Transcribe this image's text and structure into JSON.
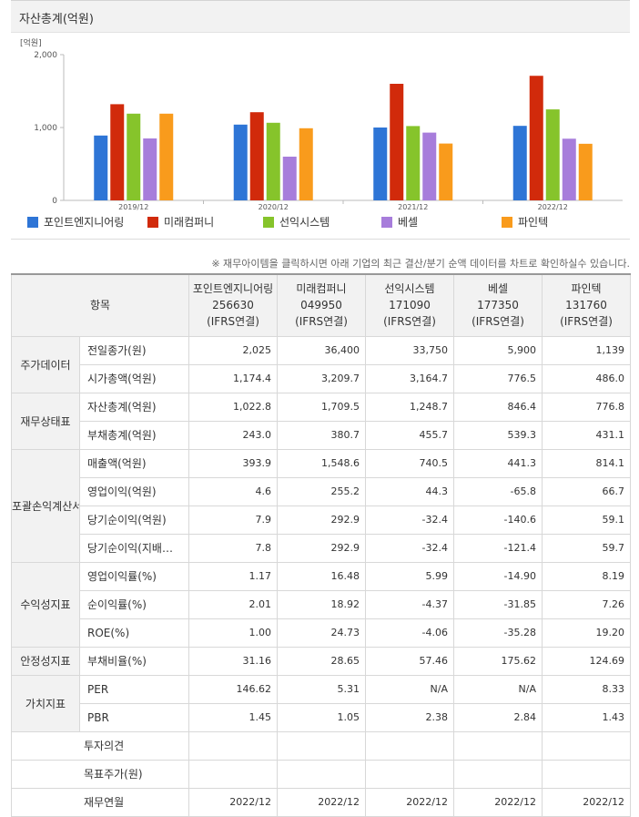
{
  "chart_title": "자산총계(억원)",
  "chart_data": {
    "type": "bar",
    "unit_label": "[억원]",
    "categories": [
      "2019/12",
      "2020/12",
      "2021/12",
      "2022/12"
    ],
    "yticks": [
      "2,000",
      "1,000",
      "0"
    ],
    "ylim": [
      0,
      2000
    ],
    "grid": false,
    "legend_position": "bottom",
    "series": [
      {
        "name": "포인트엔지니어링",
        "color": "#2e75d6",
        "values": [
          890,
          1040,
          1000,
          1022.8
        ]
      },
      {
        "name": "미래컴퍼니",
        "color": "#d12a0b",
        "values": [
          1320,
          1210,
          1600,
          1709.5
        ]
      },
      {
        "name": "선익시스템",
        "color": "#86c42b",
        "values": [
          1190,
          1065,
          1020,
          1248.7
        ]
      },
      {
        "name": "베셀",
        "color": "#a77ddb",
        "values": [
          850,
          600,
          930,
          846.4
        ]
      },
      {
        "name": "파인텍",
        "color": "#f99b1c",
        "values": [
          1190,
          990,
          780,
          776.8
        ]
      }
    ]
  },
  "note": "※ 재무아이템을 클릭하시면 아래 기업의 최근 결산/분기 순액 데이터를 차트로 확인하실수 있습니다.",
  "table": {
    "header_item": "항목",
    "columns": [
      {
        "name": "포인트엔지니어링",
        "code": "256630",
        "type": "(IFRS연결)"
      },
      {
        "name": "미래컴퍼니",
        "code": "049950",
        "type": "(IFRS연결)"
      },
      {
        "name": "선익시스템",
        "code": "171090",
        "type": "(IFRS연결)"
      },
      {
        "name": "베셀",
        "code": "177350",
        "type": "(IFRS연결)"
      },
      {
        "name": "파인텍",
        "code": "131760",
        "type": "(IFRS연결)"
      }
    ],
    "groups": [
      {
        "category": "주가데이터",
        "rows": [
          {
            "item": "전일종가(원)",
            "values": [
              "2,025",
              "36,400",
              "33,750",
              "5,900",
              "1,139"
            ]
          },
          {
            "item": "시가총액(억원)",
            "values": [
              "1,174.4",
              "3,209.7",
              "3,164.7",
              "776.5",
              "486.0"
            ]
          }
        ]
      },
      {
        "category": "재무상태표",
        "rows": [
          {
            "item": "자산총계(억원)",
            "values": [
              "1,022.8",
              "1,709.5",
              "1,248.7",
              "846.4",
              "776.8"
            ]
          },
          {
            "item": "부채총계(억원)",
            "values": [
              "243.0",
              "380.7",
              "455.7",
              "539.3",
              "431.1"
            ]
          }
        ]
      },
      {
        "category": "포괄손익계산서",
        "rows": [
          {
            "item": "매출액(억원)",
            "values": [
              "393.9",
              "1,548.6",
              "740.5",
              "441.3",
              "814.1"
            ]
          },
          {
            "item": "영업이익(억원)",
            "values": [
              "4.6",
              "255.2",
              "44.3",
              "-65.8",
              "66.7"
            ]
          },
          {
            "item": "당기순이익(억원)",
            "values": [
              "7.9",
              "292.9",
              "-32.4",
              "-140.6",
              "59.1"
            ]
          },
          {
            "item": "당기순이익(지배…",
            "values": [
              "7.8",
              "292.9",
              "-32.4",
              "-121.4",
              "59.7"
            ]
          }
        ]
      },
      {
        "category": "수익성지표",
        "rows": [
          {
            "item": "영업이익률(%)",
            "values": [
              "1.17",
              "16.48",
              "5.99",
              "-14.90",
              "8.19"
            ]
          },
          {
            "item": "순이익률(%)",
            "values": [
              "2.01",
              "18.92",
              "-4.37",
              "-31.85",
              "7.26"
            ]
          },
          {
            "item": "ROE(%)",
            "values": [
              "1.00",
              "24.73",
              "-4.06",
              "-35.28",
              "19.20"
            ]
          }
        ]
      },
      {
        "category": "안정성지표",
        "rows": [
          {
            "item": "부채비율(%)",
            "values": [
              "31.16",
              "28.65",
              "57.46",
              "175.62",
              "124.69"
            ]
          }
        ]
      },
      {
        "category": "가치지표",
        "rows": [
          {
            "item": "PER",
            "values": [
              "146.62",
              "5.31",
              "N/A",
              "N/A",
              "8.33"
            ]
          },
          {
            "item": "PBR",
            "values": [
              "1.45",
              "1.05",
              "2.38",
              "2.84",
              "1.43"
            ]
          }
        ]
      }
    ],
    "extra_rows": [
      {
        "item": "투자의견",
        "values": [
          "",
          "",
          "",
          "",
          ""
        ]
      },
      {
        "item": "목표주가(원)",
        "values": [
          "",
          "",
          "",
          "",
          ""
        ]
      },
      {
        "item": "재무연월",
        "values": [
          "2022/12",
          "2022/12",
          "2022/12",
          "2022/12",
          "2022/12"
        ]
      }
    ]
  }
}
